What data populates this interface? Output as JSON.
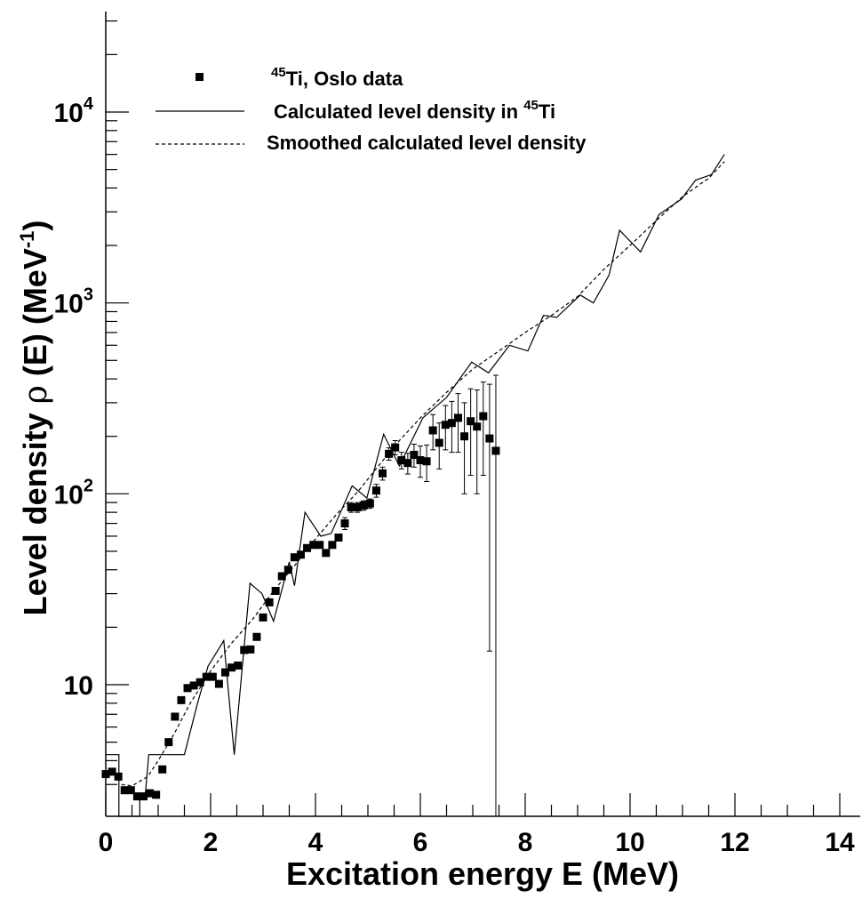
{
  "chart_data": {
    "type": "scatter",
    "xlabel": "Excitation energy E (MeV)",
    "ylabel": {
      "part1": "Level density ",
      "rho": "ρ",
      "part2": " (E) (MeV",
      "sup": "-1",
      "part3": ")"
    },
    "xlim": [
      0,
      14.5
    ],
    "ylim": [
      2,
      35000
    ],
    "yscale": "log",
    "xticks": [
      {
        "value": 0,
        "label": "0"
      },
      {
        "value": 2,
        "label": "2"
      },
      {
        "value": 4,
        "label": "4"
      },
      {
        "value": 6,
        "label": "6"
      },
      {
        "value": 8,
        "label": "8"
      },
      {
        "value": 10,
        "label": "10"
      },
      {
        "value": 12,
        "label": "12"
      },
      {
        "value": 14,
        "label": "14"
      }
    ],
    "yticks": [
      {
        "value": 10,
        "base": "10",
        "exp": ""
      },
      {
        "value": 100,
        "base": "10",
        "exp": "2"
      },
      {
        "value": 1000,
        "base": "10",
        "exp": "3"
      },
      {
        "value": 10000,
        "base": "10",
        "exp": "4"
      }
    ],
    "legend": {
      "placement": "top-left",
      "items": [
        {
          "style": "marker",
          "sup": "45",
          "text": "Ti, Oslo data"
        },
        {
          "style": "solid",
          "pre": "Calculated level density in ",
          "sup": "45",
          "text": "Ti"
        },
        {
          "style": "dashed",
          "pre": "Smoothed calculated level density",
          "sup": "",
          "text": ""
        }
      ]
    },
    "series": [
      {
        "style": "marker",
        "points": [
          [
            0.0,
            3.4,
            0
          ],
          [
            0.12,
            3.5,
            0
          ],
          [
            0.24,
            3.3,
            0
          ],
          [
            0.36,
            2.8,
            0
          ],
          [
            0.48,
            2.8,
            0
          ],
          [
            0.6,
            2.6,
            0
          ],
          [
            0.72,
            2.6,
            0
          ],
          [
            0.84,
            2.7,
            0
          ],
          [
            0.96,
            2.65,
            0
          ],
          [
            1.08,
            3.6,
            0
          ],
          [
            1.2,
            5.0,
            0
          ],
          [
            1.32,
            6.8,
            0
          ],
          [
            1.44,
            8.3,
            0
          ],
          [
            1.56,
            9.6,
            0
          ],
          [
            1.68,
            9.9,
            0
          ],
          [
            1.8,
            10.3,
            0
          ],
          [
            1.92,
            11.0,
            0
          ],
          [
            2.04,
            11.0,
            0
          ],
          [
            2.16,
            10.1,
            0
          ],
          [
            2.28,
            11.6,
            0
          ],
          [
            2.4,
            12.3,
            0
          ],
          [
            2.52,
            12.6,
            0
          ],
          [
            2.64,
            15.2,
            0
          ],
          [
            2.76,
            15.3,
            0
          ],
          [
            2.88,
            17.8,
            0
          ],
          [
            3.0,
            22.5,
            0
          ],
          [
            3.12,
            27.0,
            0
          ],
          [
            3.24,
            31.0,
            0
          ],
          [
            3.36,
            37.0,
            0
          ],
          [
            3.48,
            40.0,
            0
          ],
          [
            3.6,
            46.5,
            0
          ],
          [
            3.72,
            48.0,
            0
          ],
          [
            3.84,
            52.0,
            0
          ],
          [
            3.96,
            54.0,
            0
          ],
          [
            4.08,
            54.0,
            0
          ],
          [
            4.2,
            49.0,
            0
          ],
          [
            4.32,
            54.0,
            0
          ],
          [
            4.44,
            59.0,
            0
          ],
          [
            4.56,
            70.0,
            5
          ],
          [
            4.68,
            85.0,
            5
          ],
          [
            4.8,
            85.0,
            5
          ],
          [
            4.92,
            87.0,
            5
          ],
          [
            5.04,
            89.0,
            5
          ],
          [
            5.16,
            104.0,
            8
          ],
          [
            5.28,
            128.0,
            10
          ],
          [
            5.4,
            162.0,
            12
          ],
          [
            5.52,
            175.0,
            15
          ],
          [
            5.64,
            150.0,
            15
          ],
          [
            5.76,
            145.0,
            18
          ],
          [
            5.88,
            160.0,
            22
          ],
          [
            6.0,
            150.0,
            28
          ],
          [
            6.12,
            148.0,
            32
          ],
          [
            6.24,
            215.0,
            45
          ],
          [
            6.36,
            185.0,
            50
          ],
          [
            6.48,
            230.0,
            60
          ],
          [
            6.6,
            235.0,
            70
          ],
          [
            6.72,
            250.0,
            85
          ],
          [
            6.84,
            200.0,
            100
          ],
          [
            6.96,
            240.0,
            115
          ],
          [
            7.08,
            225.0,
            125
          ],
          [
            7.2,
            255.0,
            130
          ],
          [
            7.32,
            195.0,
            180
          ],
          [
            7.44,
            168.0,
            250
          ]
        ]
      },
      {
        "style": "solid",
        "points": [
          [
            0.0,
            4.3
          ],
          [
            0.25,
            4.3
          ],
          [
            0.25,
            2.0
          ],
          [
            0.65,
            2.0
          ],
          [
            0.65,
            2.6
          ],
          [
            0.75,
            2.6
          ],
          [
            0.82,
            4.3
          ],
          [
            1.5,
            4.3
          ],
          [
            1.75,
            8.0
          ],
          [
            1.95,
            12.5
          ],
          [
            2.25,
            17.0
          ],
          [
            2.45,
            4.3
          ],
          [
            2.75,
            34.0
          ],
          [
            2.98,
            30.0
          ],
          [
            3.2,
            21.5
          ],
          [
            3.5,
            44.0
          ],
          [
            3.6,
            33.0
          ],
          [
            3.8,
            80.0
          ],
          [
            4.1,
            60.0
          ],
          [
            4.3,
            62.0
          ],
          [
            4.7,
            110.0
          ],
          [
            4.98,
            95.0
          ],
          [
            5.3,
            205.0
          ],
          [
            5.6,
            140.0
          ],
          [
            6.05,
            250.0
          ],
          [
            6.5,
            320.0
          ],
          [
            6.98,
            490.0
          ],
          [
            7.3,
            430.0
          ],
          [
            7.7,
            600.0
          ],
          [
            8.05,
            560.0
          ],
          [
            8.35,
            860.0
          ],
          [
            8.6,
            840.0
          ],
          [
            9.05,
            1100.0
          ],
          [
            9.3,
            1000.0
          ],
          [
            9.6,
            1400.0
          ],
          [
            9.8,
            2400.0
          ],
          [
            10.2,
            1850.0
          ],
          [
            10.55,
            2900.0
          ],
          [
            10.98,
            3500.0
          ],
          [
            11.25,
            4400.0
          ],
          [
            11.55,
            4700.0
          ],
          [
            11.8,
            6000.0
          ]
        ]
      },
      {
        "style": "dashed",
        "points": [
          [
            0.3,
            3.0
          ],
          [
            0.5,
            2.95
          ],
          [
            0.8,
            3.3
          ],
          [
            1.0,
            4.0
          ],
          [
            1.3,
            5.5
          ],
          [
            1.6,
            7.9
          ],
          [
            2.0,
            11.8
          ],
          [
            2.4,
            16.5
          ],
          [
            2.8,
            22.0
          ],
          [
            3.2,
            31.0
          ],
          [
            3.6,
            42.0
          ],
          [
            4.0,
            58.0
          ],
          [
            4.4,
            78.0
          ],
          [
            4.8,
            102.0
          ],
          [
            5.2,
            140.0
          ],
          [
            5.6,
            190.0
          ],
          [
            6.0,
            250.0
          ],
          [
            6.5,
            340.0
          ],
          [
            7.0,
            450.0
          ],
          [
            7.5,
            560.0
          ],
          [
            8.0,
            700.0
          ],
          [
            8.5,
            860.0
          ],
          [
            9.0,
            1080.0
          ],
          [
            9.5,
            1500.0
          ],
          [
            10.0,
            2000.0
          ],
          [
            10.5,
            2700.0
          ],
          [
            11.0,
            3600.0
          ],
          [
            11.5,
            4500.0
          ],
          [
            11.8,
            5500.0
          ]
        ]
      }
    ]
  }
}
